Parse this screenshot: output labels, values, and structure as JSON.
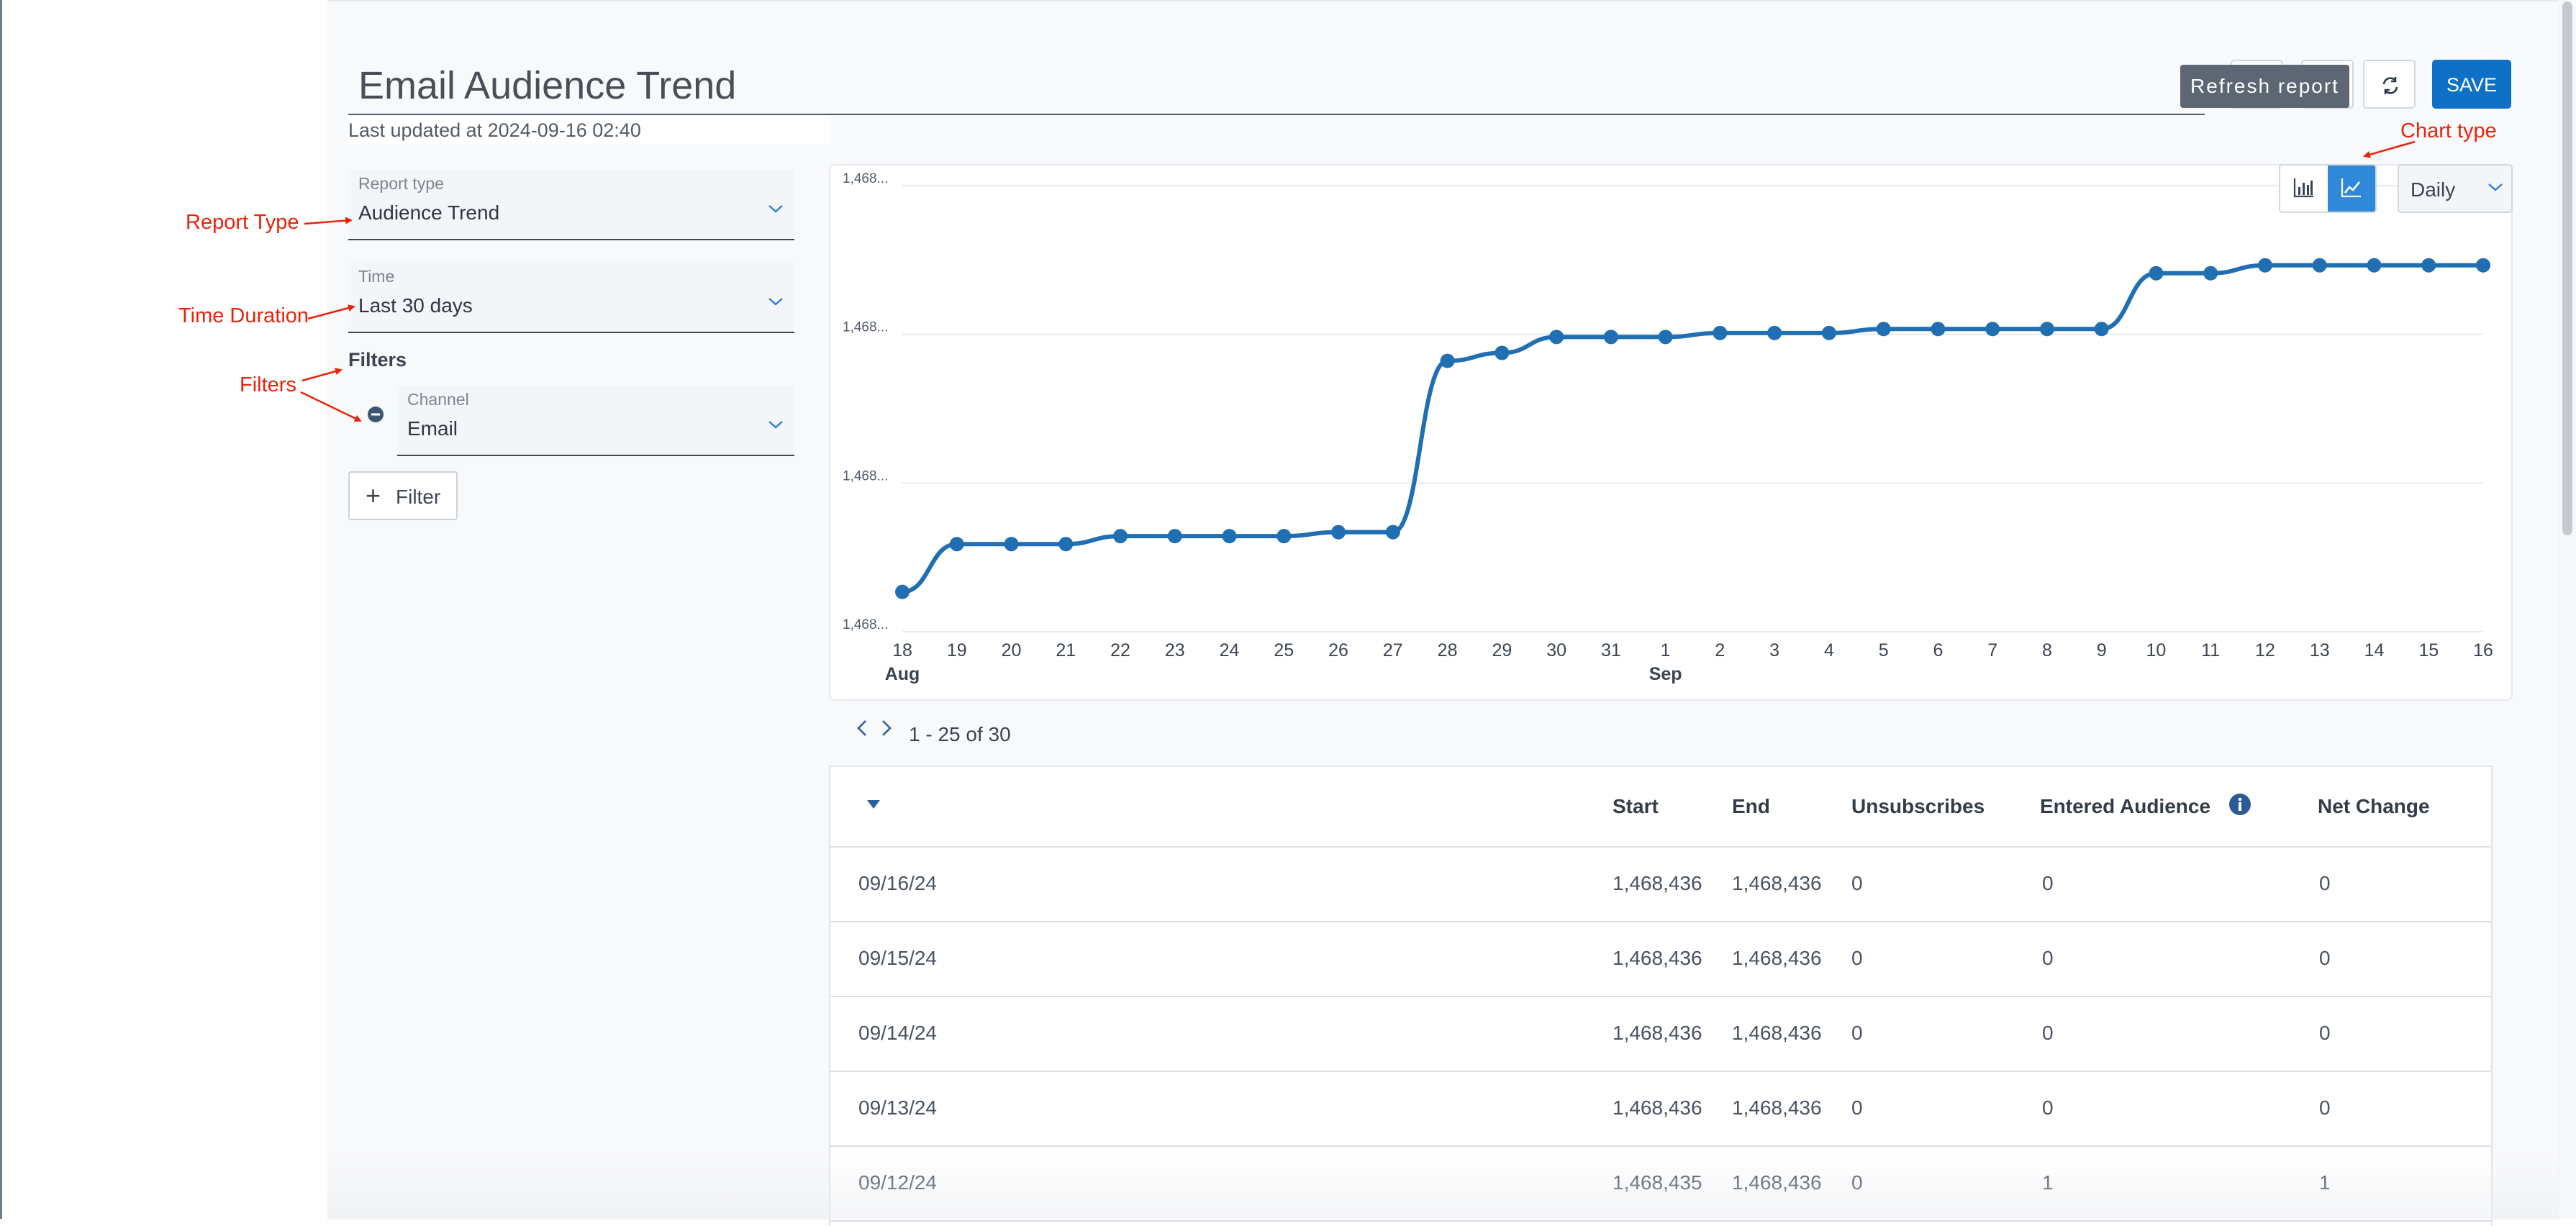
{
  "header": {
    "title": "Email Audience Trend",
    "last_updated": "Last updated at 2024-09-16 02:40",
    "refresh_tooltip": "Refresh report",
    "save_label": "SAVE"
  },
  "sidebar": {
    "report_type": {
      "label": "Report type",
      "value": "Audience Trend"
    },
    "time": {
      "label": "Time",
      "value": "Last 30 days"
    },
    "filters_heading": "Filters",
    "channel_filter": {
      "label": "Channel",
      "value": "Email"
    },
    "add_filter_label": "Filter"
  },
  "annotations": {
    "report_type": "Report Type",
    "time_duration": "Time Duration",
    "filters": "Filters",
    "chart_type": "Chart type",
    "color": "#e8230c"
  },
  "chart_controls": {
    "selected_type": "line",
    "period": "Daily"
  },
  "chart_data": {
    "type": "line",
    "x": [
      "18",
      "19",
      "20",
      "21",
      "22",
      "23",
      "24",
      "25",
      "26",
      "27",
      "28",
      "29",
      "30",
      "31",
      "1",
      "2",
      "3",
      "4",
      "5",
      "6",
      "7",
      "8",
      "9",
      "10",
      "11",
      "12",
      "13",
      "14",
      "15",
      "16"
    ],
    "x_month_labels": [
      {
        "index": 0,
        "label": "Aug"
      },
      {
        "index": 14,
        "label": "Sep"
      }
    ],
    "y_tick_labels": [
      "1,468...",
      "1,468...",
      "1,468...",
      "1,468..."
    ],
    "values": [
      1468395,
      1468401,
      1468401,
      1468401,
      1468402,
      1468402,
      1468402,
      1468402,
      1468402.5,
      1468402.5,
      1468424,
      1468425,
      1468427,
      1468427,
      1468427,
      1468427.5,
      1468427.5,
      1468427.5,
      1468428,
      1468428,
      1468428,
      1468428,
      1468428,
      1468435,
      1468435,
      1468436,
      1468436,
      1468436,
      1468436,
      1468436
    ],
    "ylim": [
      1468390,
      1468446
    ],
    "grid": true,
    "color": "#1f6fb2"
  },
  "pagination": {
    "range_text": "1 - 25 of 30"
  },
  "table": {
    "columns": [
      "",
      "Start",
      "End",
      "Unsubscribes",
      "Entered Audience",
      "Net Change"
    ],
    "rows": [
      [
        "09/16/24",
        "1,468,436",
        "1,468,436",
        "0",
        "0",
        "0"
      ],
      [
        "09/15/24",
        "1,468,436",
        "1,468,436",
        "0",
        "0",
        "0"
      ],
      [
        "09/14/24",
        "1,468,436",
        "1,468,436",
        "0",
        "0",
        "0"
      ],
      [
        "09/13/24",
        "1,468,436",
        "1,468,436",
        "0",
        "0",
        "0"
      ],
      [
        "09/12/24",
        "1,468,435",
        "1,468,436",
        "0",
        "1",
        "1"
      ]
    ]
  }
}
